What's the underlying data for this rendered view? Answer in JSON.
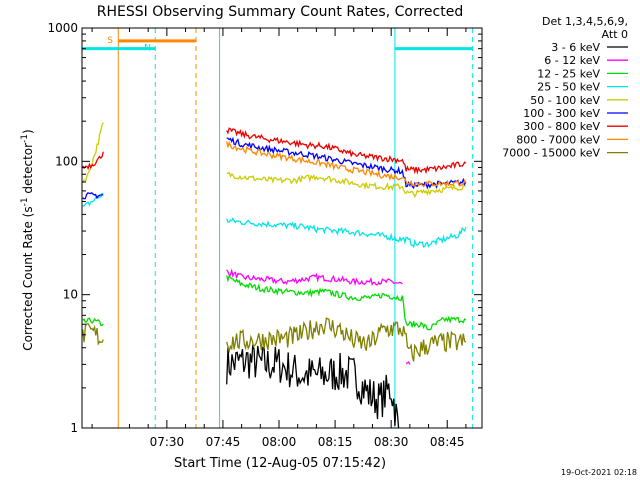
{
  "chart_data": {
    "type": "line",
    "title": "RHESSI Observing Summary Count Rates, Corrected",
    "xlabel": "Start Time (12-Aug-05 07:15:42)",
    "ylabel": "Corrected Count Rate (s⁻¹ detector⁻¹)",
    "ylabel_parts": [
      "Corrected Count Rate (s",
      "-1",
      " detector",
      "-1",
      ")"
    ],
    "yscale": "log",
    "ylim": [
      1,
      1000
    ],
    "xlim_minutes": [
      7.3,
      114.3
    ],
    "x_ticks": [
      {
        "label": "07:30",
        "minute": 30
      },
      {
        "label": "07:45",
        "minute": 45
      },
      {
        "label": "08:00",
        "minute": 60
      },
      {
        "label": "08:15",
        "minute": 75
      },
      {
        "label": "08:30",
        "minute": 90
      },
      {
        "label": "08:45",
        "minute": 105
      }
    ],
    "y_ticks": [
      {
        "label": "1",
        "value": 1
      },
      {
        "label": "10",
        "value": 10
      },
      {
        "label": "100",
        "value": 100
      },
      {
        "label": "1000",
        "value": 1000
      }
    ],
    "legend_header": [
      "Det 1,3,4,5,6,9,",
      "Att 0"
    ],
    "legend_position": "right",
    "series": [
      {
        "name": "3 - 6 keV",
        "color": "#000000",
        "segments": [
          [
            [
              46,
              3
            ],
            [
              52,
              3.2
            ],
            [
              56,
              3
            ],
            [
              60,
              3
            ],
            [
              66,
              2.5
            ],
            [
              72,
              2.5
            ],
            [
              76,
              2.6
            ],
            [
              80,
              2.5
            ],
            [
              84,
              1.8
            ],
            [
              87,
              1.6
            ],
            [
              90,
              2.0
            ],
            [
              92,
              1.0
            ]
          ]
        ]
      },
      {
        "name": "6 - 12 keV",
        "color": "#ff00ff",
        "segments": [
          [
            [
              46,
              15
            ],
            [
              50,
              13.5
            ],
            [
              56,
              13
            ],
            [
              62,
              12.5
            ],
            [
              70,
              13.5
            ],
            [
              76,
              13
            ],
            [
              80,
              12.5
            ],
            [
              86,
              12.5
            ],
            [
              90,
              12.5
            ],
            [
              93,
              12
            ]
          ],
          [
            [
              94,
              3
            ],
            [
              95,
              3
            ]
          ]
        ]
      },
      {
        "name": "12 - 25 keV",
        "color": "#00dd00",
        "segments": [
          [
            [
              7.5,
              6.2
            ],
            [
              10,
              6.4
            ],
            [
              13,
              6
            ]
          ],
          [
            [
              46,
              13.5
            ],
            [
              50,
              12
            ],
            [
              56,
              11
            ],
            [
              62,
              10.5
            ],
            [
              68,
              10.3
            ],
            [
              72,
              10.6
            ],
            [
              76,
              10
            ],
            [
              80,
              9.5
            ],
            [
              85,
              9.5
            ],
            [
              88,
              10
            ],
            [
              92,
              9.5
            ],
            [
              93,
              9.5
            ],
            [
              94,
              6
            ],
            [
              98,
              6
            ],
            [
              100,
              5.5
            ],
            [
              104,
              6.5
            ],
            [
              110,
              6.5
            ]
          ]
        ]
      },
      {
        "name": "25 - 50 keV",
        "color": "#00e5e5",
        "segments": [
          [
            [
              7.5,
              45
            ],
            [
              10,
              50
            ],
            [
              13,
              57
            ]
          ],
          [
            [
              46,
              36
            ],
            [
              50,
              35
            ],
            [
              56,
              34
            ],
            [
              62,
              33
            ],
            [
              66,
              32.5
            ],
            [
              70,
              31
            ],
            [
              76,
              30
            ],
            [
              82,
              29
            ],
            [
              86,
              28
            ],
            [
              90,
              27
            ],
            [
              92,
              26
            ],
            [
              94,
              26
            ],
            [
              96,
              24
            ],
            [
              100,
              24
            ],
            [
              104,
              26
            ],
            [
              108,
              28
            ],
            [
              110,
              32
            ]
          ]
        ]
      },
      {
        "name": "50 - 100 keV",
        "color": "#cccc00",
        "segments": [
          [
            [
              7.5,
              70
            ],
            [
              9,
              80
            ],
            [
              11,
              120
            ],
            [
              13,
              195
            ]
          ],
          [
            [
              46,
              80
            ],
            [
              52,
              75
            ],
            [
              58,
              72
            ],
            [
              64,
              72
            ],
            [
              70,
              77
            ],
            [
              76,
              72
            ],
            [
              82,
              67
            ],
            [
              86,
              65
            ],
            [
              90,
              64
            ],
            [
              93,
              65
            ],
            [
              94,
              58
            ],
            [
              96,
              57
            ],
            [
              100,
              60
            ],
            [
              105,
              62
            ],
            [
              110,
              65
            ]
          ]
        ]
      },
      {
        "name": "100 - 300 keV",
        "color": "#0000ff",
        "segments": [
          [
            [
              7.5,
              55
            ],
            [
              13,
              56
            ]
          ],
          [
            [
              46,
              148
            ],
            [
              50,
              135
            ],
            [
              56,
              125
            ],
            [
              62,
              118
            ],
            [
              68,
              112
            ],
            [
              74,
              104
            ],
            [
              80,
              96
            ],
            [
              86,
              90
            ],
            [
              90,
              86
            ],
            [
              93,
              84
            ],
            [
              94,
              67
            ],
            [
              97,
              66
            ],
            [
              100,
              67
            ],
            [
              105,
              68
            ],
            [
              110,
              70
            ]
          ]
        ]
      },
      {
        "name": "300 - 800 keV",
        "color": "#ee0000",
        "segments": [
          [
            [
              7.5,
              90
            ],
            [
              10,
              95
            ],
            [
              12,
              105
            ],
            [
              13,
              118
            ]
          ],
          [
            [
              46,
              172
            ],
            [
              50,
              160
            ],
            [
              56,
              148
            ],
            [
              62,
              140
            ],
            [
              68,
              132
            ],
            [
              72,
              130
            ],
            [
              76,
              122
            ],
            [
              80,
              112
            ],
            [
              86,
              107
            ],
            [
              90,
              104
            ],
            [
              93,
              102
            ],
            [
              94,
              87
            ],
            [
              98,
              86
            ],
            [
              102,
              88
            ],
            [
              106,
              92
            ],
            [
              110,
              97
            ]
          ]
        ]
      },
      {
        "name": "800 - 7000 keV",
        "color": "#ff8800",
        "segments": [
          [
            [
              46,
              135
            ],
            [
              50,
              124
            ],
            [
              56,
              114
            ],
            [
              62,
              107
            ],
            [
              68,
              100
            ],
            [
              72,
              96
            ],
            [
              76,
              90
            ],
            [
              80,
              86
            ],
            [
              86,
              80
            ],
            [
              90,
              77
            ],
            [
              93,
              76
            ],
            [
              94,
              70
            ],
            [
              98,
              68
            ],
            [
              104,
              68
            ],
            [
              110,
              69
            ]
          ]
        ]
      },
      {
        "name": "7000 - 15000 keV",
        "color": "#808000",
        "segments": [
          [
            [
              7.5,
              5.0
            ],
            [
              10,
              5.2
            ],
            [
              13,
              4.6
            ]
          ],
          [
            [
              46,
              4.4
            ],
            [
              50,
              4.5
            ],
            [
              56,
              4.6
            ],
            [
              62,
              4.7
            ],
            [
              66,
              5.0
            ],
            [
              70,
              5.8
            ],
            [
              72,
              6.0
            ],
            [
              76,
              5.5
            ],
            [
              80,
              4.5
            ],
            [
              84,
              4.2
            ],
            [
              88,
              5.5
            ],
            [
              91,
              5.6
            ],
            [
              93,
              5.5
            ],
            [
              95,
              3.5
            ],
            [
              97,
              3.8
            ],
            [
              100,
              4.2
            ],
            [
              104,
              4.4
            ],
            [
              110,
              4.4
            ]
          ]
        ]
      }
    ],
    "markers": [
      {
        "kind": "vline",
        "minute": 17.0,
        "color": "#ff8800",
        "dash": false
      },
      {
        "kind": "vline",
        "minute": 26.9,
        "color": "#00e5e5",
        "dash": true
      },
      {
        "kind": "vline",
        "minute": 37.8,
        "color": "#ff8800",
        "dash": true
      },
      {
        "kind": "vline",
        "minute": 44.1,
        "color": "#00e5e5",
        "dash": false
      },
      {
        "kind": "vline",
        "minute": 91.0,
        "color": "#00e5e5",
        "dash": false
      },
      {
        "kind": "vline",
        "minute": 111.8,
        "color": "#00e5e5",
        "dash": true
      }
    ],
    "bars": [
      {
        "label": "",
        "from": 7.3,
        "to": 26.9,
        "y": 700,
        "color": "#00e5e5"
      },
      {
        "label": "S",
        "from": 17.0,
        "to": 37.8,
        "y": 800,
        "color": "#ff8800"
      },
      {
        "label": "N",
        "from": 26.9,
        "to": 26.9,
        "y": 700,
        "color": "#00e5e5"
      },
      {
        "label": "",
        "from": 91.0,
        "to": 111.8,
        "y": 700,
        "color": "#00e5e5"
      }
    ],
    "footer": "19-Oct-2021 02:18"
  }
}
